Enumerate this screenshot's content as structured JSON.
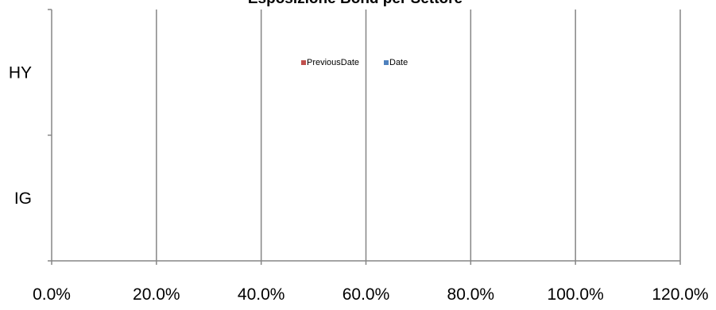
{
  "chart_data": {
    "type": "bar",
    "orientation": "horizontal",
    "title": "Esposizione Bond per Settore",
    "categories": [
      "HY",
      "IG"
    ],
    "series": [
      {
        "name": "PreviousDate",
        "color": "#c0504d",
        "values": [
          0,
          0
        ]
      },
      {
        "name": "Date",
        "color": "#4f81bd",
        "values": [
          0,
          0
        ]
      }
    ],
    "xlim": [
      0,
      1.2
    ],
    "x_ticks": [
      0,
      0.2,
      0.4,
      0.6,
      0.8,
      1.0,
      1.2
    ],
    "x_tick_labels": [
      "0.0%",
      "20.0%",
      "40.0%",
      "60.0%",
      "80.0%",
      "100.0%",
      "120.0%"
    ],
    "xlabel": "",
    "ylabel": "",
    "grid": "vertical",
    "legend": "top-center",
    "gridline_color": "#868686",
    "axis_color": "#868686"
  }
}
